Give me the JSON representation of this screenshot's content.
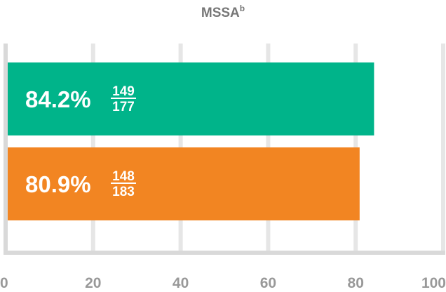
{
  "chart_data": {
    "type": "bar",
    "orientation": "horizontal",
    "title": "MSSA",
    "title_superscript": "b",
    "xlim": [
      0,
      100
    ],
    "xticks": [
      "0",
      "20",
      "40",
      "60",
      "80",
      "100"
    ],
    "grid": true,
    "bars": [
      {
        "value": 84.2,
        "label": "84.2%",
        "numerator": "149",
        "denominator": "177",
        "color": "#00b48a"
      },
      {
        "value": 80.9,
        "label": "80.9%",
        "numerator": "148",
        "denominator": "183",
        "color": "#f28522"
      }
    ]
  },
  "colors": {
    "grid": "#e6e6e6",
    "axis": "#d9d9d9",
    "tick_text": "#999999",
    "title_text": "#777777",
    "bar_text": "#ffffff"
  }
}
